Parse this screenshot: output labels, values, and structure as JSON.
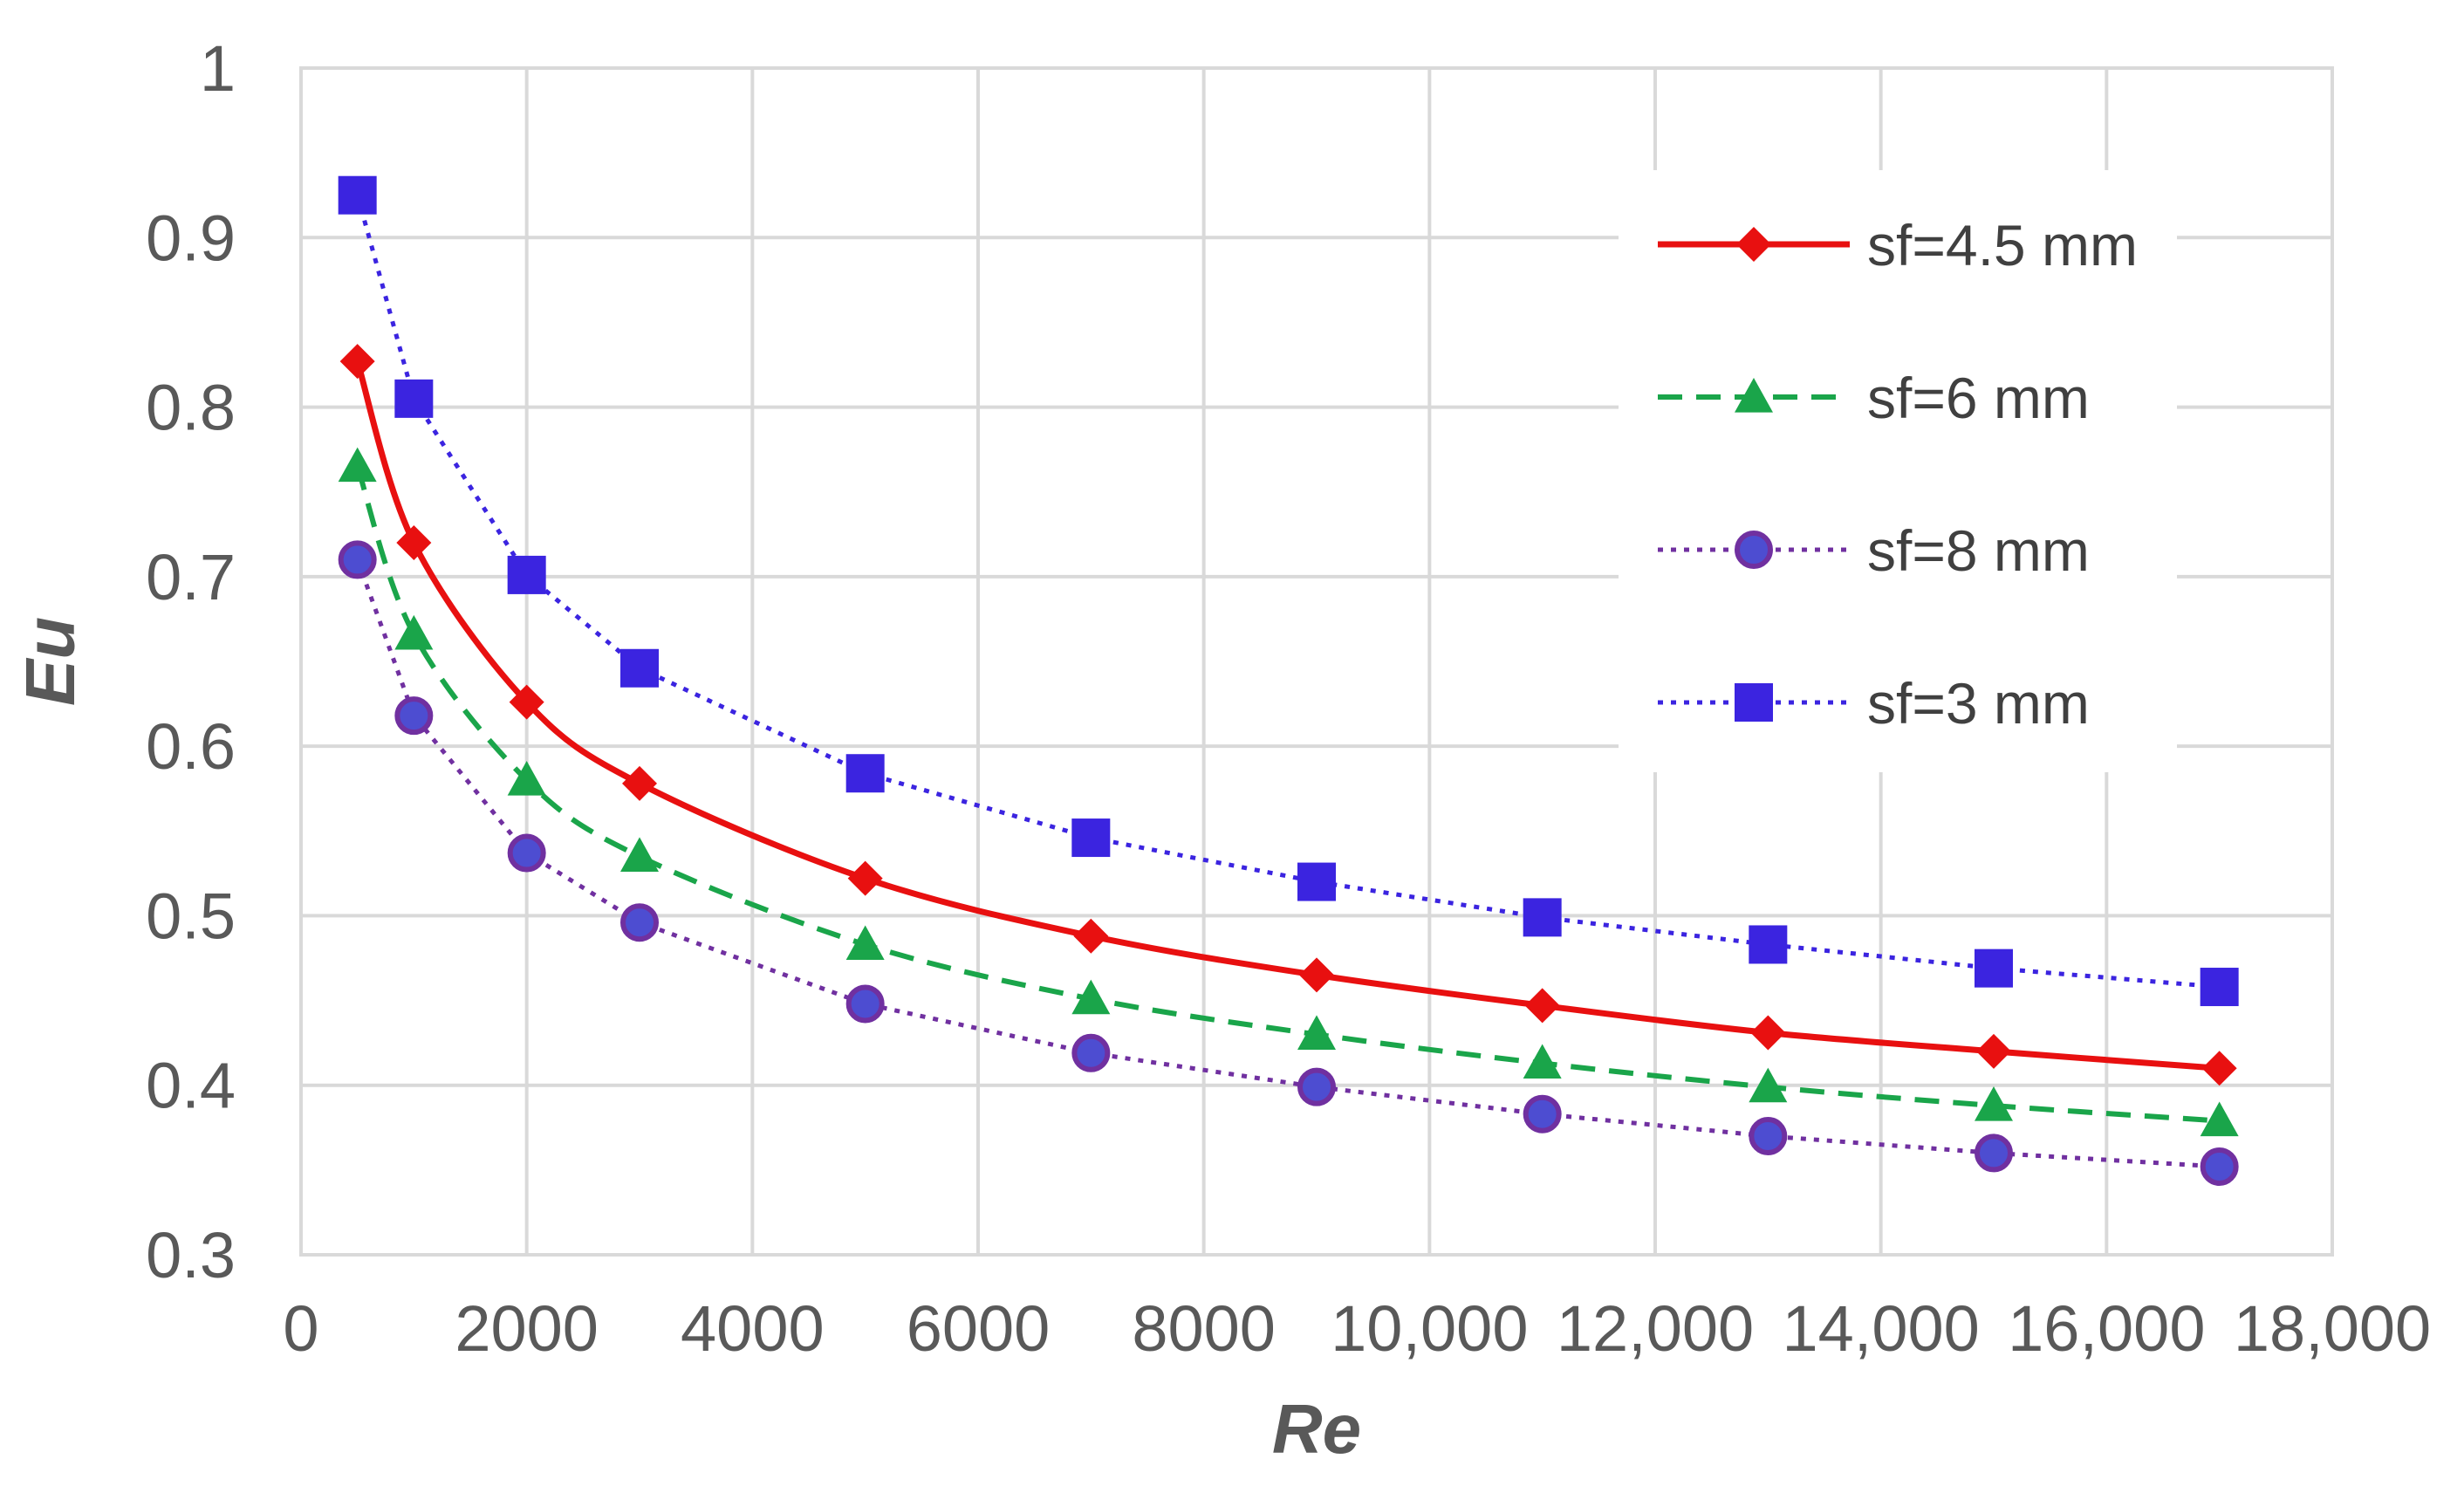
{
  "chart_data": {
    "type": "line",
    "title": "",
    "xlabel": "Re",
    "ylabel": "Eu",
    "xlim": [
      0,
      18000
    ],
    "ylim": [
      0.3,
      1.0
    ],
    "grid": true,
    "legend_position": "top-right",
    "x_ticks": [
      {
        "value": 0,
        "label": "0"
      },
      {
        "value": 2000,
        "label": "2000"
      },
      {
        "value": 4000,
        "label": "4000"
      },
      {
        "value": 6000,
        "label": "6000"
      },
      {
        "value": 8000,
        "label": "8000"
      },
      {
        "value": 10000,
        "label": "10,000"
      },
      {
        "value": 12000,
        "label": "12,000"
      },
      {
        "value": 14000,
        "label": "14,000"
      },
      {
        "value": 16000,
        "label": "16,000"
      },
      {
        "value": 18000,
        "label": "18,000"
      }
    ],
    "y_ticks": [
      {
        "value": 0.3,
        "label": "0.3"
      },
      {
        "value": 0.4,
        "label": "0.4"
      },
      {
        "value": 0.5,
        "label": "0.5"
      },
      {
        "value": 0.6,
        "label": "0.6"
      },
      {
        "value": 0.7,
        "label": "0.7"
      },
      {
        "value": 0.8,
        "label": "0.8"
      },
      {
        "value": 0.9,
        "label": "0.9"
      },
      {
        "value": 1.0,
        "label": "1"
      }
    ],
    "x": [
      500,
      1000,
      2000,
      3000,
      5000,
      7000,
      9000,
      11000,
      13000,
      15000,
      17000
    ],
    "series": [
      {
        "name": "sf=4.5 mm",
        "color": "#e81010",
        "line_style": "solid",
        "marker": "diamond",
        "values": [
          0.827,
          0.72,
          0.626,
          0.578,
          0.522,
          0.488,
          0.465,
          0.447,
          0.431,
          0.42,
          0.41
        ]
      },
      {
        "name": "sf=6 mm",
        "color": "#1aa54a",
        "line_style": "dashed",
        "marker": "triangle",
        "values": [
          0.765,
          0.666,
          0.58,
          0.535,
          0.483,
          0.451,
          0.43,
          0.413,
          0.399,
          0.388,
          0.379
        ]
      },
      {
        "name": "sf=8 mm",
        "color": "#7030a0",
        "marker_fill": "#4d4dd1",
        "line_style": "dotted",
        "marker": "circle",
        "values": [
          0.71,
          0.618,
          0.537,
          0.496,
          0.448,
          0.419,
          0.399,
          0.383,
          0.37,
          0.36,
          0.352
        ]
      },
      {
        "name": "sf=3 mm",
        "color": "#3b24e0",
        "line_style": "dotted",
        "marker": "square",
        "values": [
          0.925,
          0.805,
          0.701,
          0.646,
          0.584,
          0.546,
          0.52,
          0.499,
          0.483,
          0.469,
          0.458
        ]
      }
    ]
  }
}
